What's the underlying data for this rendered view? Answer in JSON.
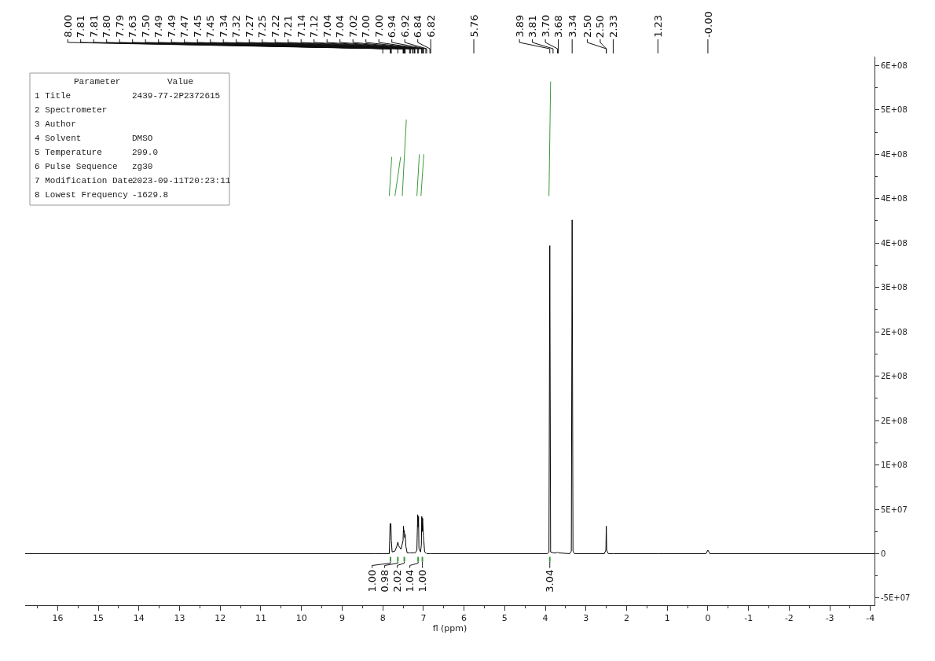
{
  "chart_data": {
    "type": "line",
    "xlabel": "fl (ppm)",
    "marker": "none",
    "line_style": "solid",
    "xlim": [
      16.8,
      -4.1
    ],
    "xticks": [
      16,
      15,
      14,
      13,
      12,
      11,
      10,
      9,
      8,
      7,
      6,
      5,
      4,
      3,
      2,
      1,
      0,
      -1,
      -2,
      -3,
      -4
    ],
    "ylim": [
      -58000000,
      560000000
    ],
    "yticks": [
      {
        "value": -50000000,
        "label": "-5E+07"
      },
      0,
      {
        "value": 50000000,
        "label": "5E+07"
      },
      {
        "value": 100000000,
        "label": "1E+08"
      },
      {
        "value": 150000000,
        "label": "2E+08"
      },
      {
        "value": 200000000,
        "label": "2E+08"
      },
      {
        "value": 250000000,
        "label": "2E+08"
      },
      {
        "value": 300000000,
        "label": "3E+08"
      },
      {
        "value": 350000000,
        "label": "4E+08"
      },
      {
        "value": 400000000,
        "label": "4E+08"
      },
      {
        "value": 450000000,
        "label": "4E+08"
      },
      {
        "value": 500000000,
        "label": "5E+08"
      },
      {
        "value": 550000000,
        "label": "6E+08"
      }
    ],
    "series": [
      {
        "color": "#000000",
        "x": [
          16.8,
          8.2,
          8.0,
          7.84,
          7.83,
          7.82,
          7.81,
          7.8,
          7.79,
          7.77,
          7.7,
          7.65,
          7.63,
          7.61,
          7.55,
          7.5,
          7.49,
          7.48,
          7.47,
          7.46,
          7.45,
          7.43,
          7.4,
          7.34,
          7.32,
          7.27,
          7.25,
          7.22,
          7.21,
          7.2,
          7.16,
          7.15,
          7.14,
          7.13,
          7.12,
          7.11,
          7.07,
          7.05,
          7.04,
          7.03,
          7.02,
          7.0,
          6.99,
          6.97,
          6.94,
          6.92,
          6.9,
          6.84,
          6.82,
          5.76,
          3.95,
          3.91,
          3.89,
          3.87,
          3.81,
          3.72,
          3.7,
          3.68,
          3.4,
          3.36,
          3.34,
          3.32,
          3.28,
          2.55,
          2.51,
          2.5,
          2.49,
          2.45,
          2.33,
          1.23,
          0.05,
          0.0,
          -0.05,
          -4.1
        ],
        "values": [
          0,
          0,
          0,
          0,
          15000000,
          34000000,
          32000000,
          34000000,
          15000000,
          2000000,
          3000000,
          9000000,
          13000000,
          9000000,
          5000000,
          15000000,
          31000000,
          24000000,
          26000000,
          18000000,
          22000000,
          8000000,
          1000000,
          1000000,
          1000000,
          1000000,
          1000000,
          1000000,
          1000000,
          1000000,
          4000000,
          25000000,
          44000000,
          30000000,
          42000000,
          6000000,
          2000000,
          10000000,
          42000000,
          25000000,
          40000000,
          20000000,
          15000000,
          2000000,
          1000000,
          0,
          0,
          0,
          0,
          0,
          0,
          2000000,
          347000000,
          2000000,
          1000000,
          1000000,
          2000000,
          1000000,
          0,
          3000000,
          376000000,
          3000000,
          0,
          0,
          4000000,
          31000000,
          4000000,
          0,
          0,
          0,
          0,
          4000000,
          0,
          0
        ]
      },
      {
        "color": "#3c9a3c",
        "x": [
          7.84,
          7.78
        ],
        "values": [
          403000000,
          447000000
        ]
      },
      {
        "color": "#3c9a3c",
        "x": [
          7.7,
          7.56
        ],
        "values": [
          403000000,
          447000000
        ]
      },
      {
        "color": "#3c9a3c",
        "x": [
          7.52,
          7.42
        ],
        "values": [
          403000000,
          489000000
        ]
      },
      {
        "color": "#3c9a3c",
        "x": [
          7.16,
          7.1
        ],
        "values": [
          403000000,
          450000000
        ]
      },
      {
        "color": "#3c9a3c",
        "x": [
          7.06,
          6.99
        ],
        "values": [
          403000000,
          450000000
        ]
      },
      {
        "color": "#3c9a3c",
        "x": [
          3.91,
          3.87
        ],
        "values": [
          403000000,
          532000000
        ]
      }
    ],
    "annotations": [
      "Parameter\n1 Title\n2 Spectrometer\n3 Author\n4 Solvent\n5 Temperature\n6 Pulse Sequence\n7 Modification Date\n8 Lowest Frequency",
      "Value\n2439-77-2P2372615\n\n\nDMSO\n299.0\nzg30\n2023-09-11T20:23:11\n-1629.8",
      {
        "text": "8.00",
        "x": 8.0
      },
      {
        "text": "7.81",
        "x": 7.81
      },
      {
        "text": "7.81",
        "x": 7.81
      },
      {
        "text": "7.80",
        "x": 7.8
      },
      {
        "text": "7.79",
        "x": 7.79
      },
      {
        "text": "7.63",
        "x": 7.63
      },
      {
        "text": "7.50",
        "x": 7.5
      },
      {
        "text": "7.49",
        "x": 7.49
      },
      {
        "text": "7.49",
        "x": 7.49
      },
      {
        "text": "7.47",
        "x": 7.47
      },
      {
        "text": "7.45",
        "x": 7.45
      },
      {
        "text": "7.45",
        "x": 7.45
      },
      {
        "text": "7.34",
        "x": 7.34
      },
      {
        "text": "7.32",
        "x": 7.32
      },
      {
        "text": "7.27",
        "x": 7.27
      },
      {
        "text": "7.25",
        "x": 7.25
      },
      {
        "text": "7.22",
        "x": 7.22
      },
      {
        "text": "7.21",
        "x": 7.21
      },
      {
        "text": "7.14",
        "x": 7.14
      },
      {
        "text": "7.12",
        "x": 7.12
      },
      {
        "text": "7.04",
        "x": 7.04
      },
      {
        "text": "7.04",
        "x": 7.04
      },
      {
        "text": "7.02",
        "x": 7.02
      },
      {
        "text": "7.00",
        "x": 7.0
      },
      {
        "text": "7.00",
        "x": 7.0
      },
      {
        "text": "6.94",
        "x": 6.94
      },
      {
        "text": "6.92",
        "x": 6.92
      },
      {
        "text": "6.84",
        "x": 6.84
      },
      {
        "text": "6.82",
        "x": 6.82
      },
      {
        "text": "5.76",
        "x": 5.76
      },
      {
        "text": "3.89",
        "x": 3.89
      },
      {
        "text": "3.81",
        "x": 3.81
      },
      {
        "text": "3.70",
        "x": 3.7
      },
      {
        "text": "3.68",
        "x": 3.68
      },
      {
        "text": "3.34",
        "x": 3.34
      },
      {
        "text": "2.50",
        "x": 2.5
      },
      {
        "text": "2.50",
        "x": 2.5
      },
      {
        "text": "2.33",
        "x": 2.33
      },
      {
        "text": "1.23",
        "x": 1.23
      },
      {
        "text": "-0.00",
        "x": 0.0
      },
      "1.00",
      "0.98",
      "2.02",
      "1.04",
      "1.00",
      "3.04"
    ]
  }
}
